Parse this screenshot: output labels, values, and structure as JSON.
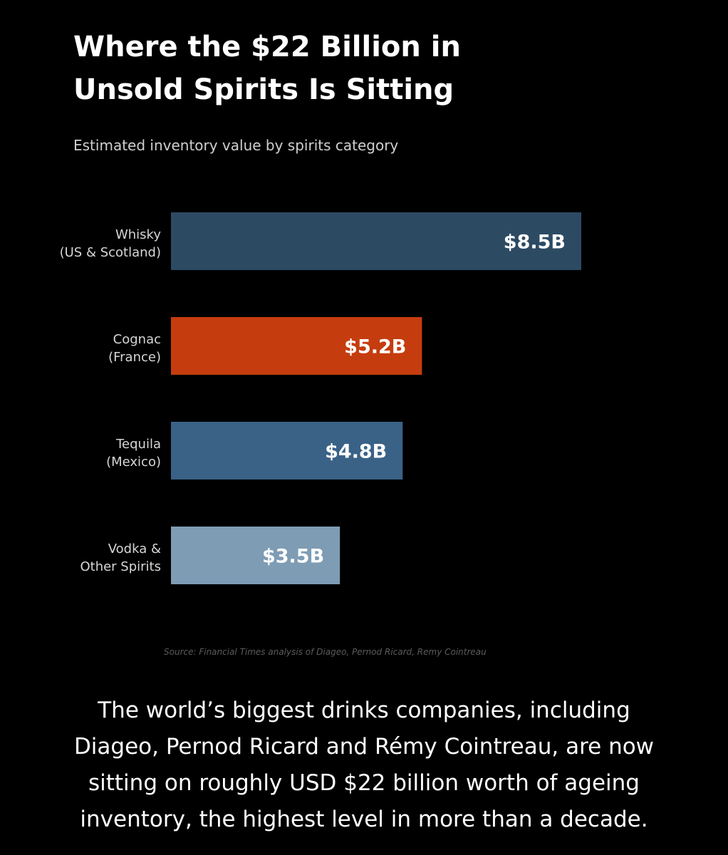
{
  "chart_data": {
    "type": "bar",
    "orientation": "horizontal",
    "title_lines": [
      "Where the $22 Billion in",
      "Unsold Spirits Is Sitting"
    ],
    "subtitle": "Estimated inventory value by spirits category",
    "categories": [
      {
        "lines": [
          "Whisky",
          "(US & Scotland)"
        ],
        "value": 8.5,
        "label": "$8.5B",
        "color": "#2d4a63"
      },
      {
        "lines": [
          "Cognac",
          "(France)"
        ],
        "value": 5.2,
        "label": "$5.2B",
        "color": "#c53d0f"
      },
      {
        "lines": [
          "Tequila",
          "(Mexico)"
        ],
        "value": 4.8,
        "label": "$4.8B",
        "color": "#3a6287"
      },
      {
        "lines": [
          "Vodka &",
          "Other Spirits"
        ],
        "value": 3.5,
        "label": "$3.5B",
        "color": "#7e9cb4"
      }
    ],
    "unit": "USD billions",
    "grid": false,
    "legend": false,
    "source": "Source: Financial Times analysis of Diageo, Pernod Ricard, Remy Cointreau"
  },
  "caption_lines": [
    "The world’s biggest drinks companies, including",
    "Diageo, Pernod Ricard and Rémy Cointreau, are now",
    "sitting on roughly USD $22 billion worth of ageing",
    "inventory, the highest level in more than a decade."
  ]
}
